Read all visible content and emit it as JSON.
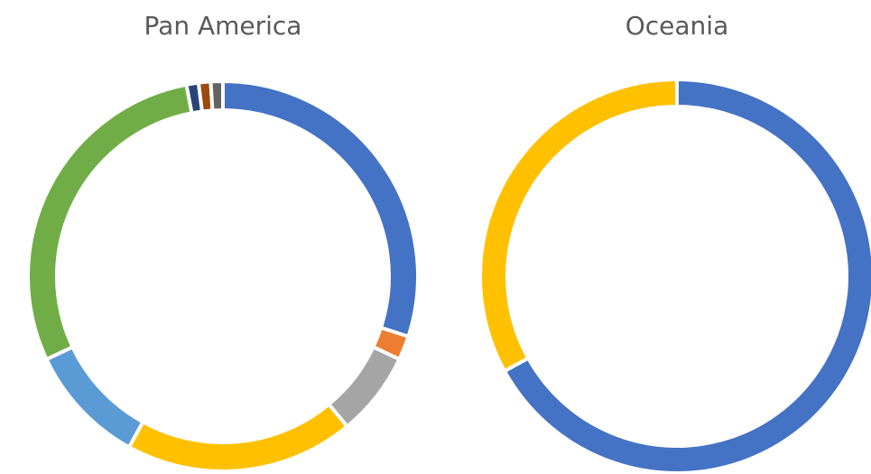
{
  "chart_data": [
    {
      "type": "donut",
      "title": "Pan America",
      "values": [
        30,
        2,
        7,
        19,
        10,
        29,
        1,
        1,
        1
      ],
      "colors": [
        "#4472c4",
        "#ed7d31",
        "#a5a5a5",
        "#ffc000",
        "#5b9bd5",
        "#70ad47",
        "#264478",
        "#9e480e",
        "#636363"
      ]
    },
    {
      "type": "donut",
      "title": "Oceania",
      "values": [
        67,
        33
      ],
      "colors": [
        "#4472c4",
        "#ffc000"
      ]
    }
  ]
}
